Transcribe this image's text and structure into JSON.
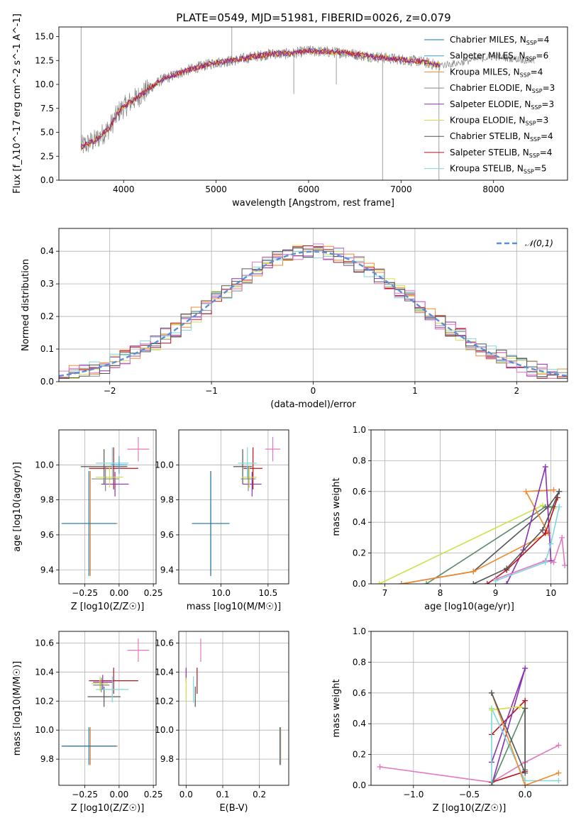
{
  "title": "PLATE=0549, MJD=51981, FIBERID=0026, z=0.079",
  "colors": {
    "chabrier_miles": "#1f77b4",
    "salpeter_miles": "#3a9fd8",
    "kroupa_miles": "#ef8a2f",
    "chabrier_elodie": "#888888",
    "salpeter_elodie": "#8b2fb0",
    "kroupa_elodie": "#cfe04a",
    "chabrier_stelib": "#555555",
    "salpeter_stelib": "#b8141a",
    "kroupa_stelib": "#7fd7dc",
    "pink": "#e377c2",
    "green": "#5a8a6a",
    "gauss": "#5b8fd6"
  },
  "chart_data": [
    {
      "id": "spectrum",
      "type": "line",
      "xlabel": "wavelength [Angstrom, rest frame]",
      "ylabel": "Flux [f_λ10^-17 erg cm^-2 s^-1 A^-1]",
      "xlim": [
        3300,
        8800
      ],
      "ylim": [
        0,
        16
      ],
      "xticks": [
        "4000",
        "5000",
        "6000",
        "7000",
        "8000"
      ],
      "yticks": [
        "0.0",
        "2.5",
        "5.0",
        "7.5",
        "10.0",
        "12.5",
        "15.0"
      ],
      "legend_loc": "upper-right",
      "legend": [
        "Chabrier MILES, N_SSP=4",
        "Salpeter MILES, N_SSP=6",
        "Kroupa MILES, N_SSP=4",
        "Chabrier ELODIE, N_SSP=3",
        "Salpeter ELODIE, N_SSP=3",
        "Kroupa ELODIE, N_SSP=3",
        "Chabrier STELIB, N_SSP=4",
        "Salpeter STELIB, N_SSP=4",
        "Kroupa STELIB, N_SSP=5"
      ],
      "continuum": {
        "x": [
          3540,
          3700,
          3850,
          3950,
          4050,
          4200,
          4400,
          4600,
          4800,
          5000,
          5200,
          5400,
          5600,
          5800,
          6000,
          6200,
          6400,
          6600,
          6800,
          7000,
          7200,
          7400,
          7600,
          7800,
          8000,
          8200,
          8400
        ],
        "y": [
          3.5,
          4.2,
          5.5,
          7.2,
          8.0,
          9.0,
          10.4,
          11.2,
          11.8,
          12.3,
          12.5,
          12.9,
          13.2,
          13.2,
          13.5,
          13.4,
          13.3,
          13.0,
          12.8,
          12.6,
          12.4,
          12.0,
          12.2,
          12.6,
          12.9,
          12.7,
          12.5
        ]
      }
    },
    {
      "id": "residuals",
      "type": "histogram",
      "xlabel": "(data-model)/error",
      "ylabel": "Normed distribution",
      "xlim": [
        -2.5,
        2.5
      ],
      "ylim": [
        0,
        0.47
      ],
      "xticks": [
        "−2",
        "−1",
        "0",
        "1",
        "2"
      ],
      "yticks": [
        "0.0",
        "0.1",
        "0.2",
        "0.3",
        "0.4"
      ],
      "legend_loc": "upper-right",
      "legend": [
        "𝒩(0,1)"
      ],
      "bin_width": 0.1,
      "gaussian": {
        "mu": 0,
        "sigma": 1
      }
    },
    {
      "id": "age-vs-Z",
      "type": "errorbar",
      "xlabel": "Z [log10(Z/Z☉)]",
      "ylabel": "age [log10(age/yr)]",
      "xlim": [
        -0.44,
        0.27
      ],
      "ylim": [
        9.32,
        10.2
      ],
      "xticks": [
        "−0.25",
        "0.00",
        "0.25"
      ],
      "yticks": [
        "9.4",
        "9.6",
        "9.8",
        "10.0"
      ],
      "points": [
        {
          "c": "kroupa_miles",
          "x": -0.21,
          "y": 9.665,
          "xerr": 0.2,
          "yerr": 0.3
        },
        {
          "c": "chabrier_miles",
          "x": -0.22,
          "y": 9.665,
          "xerr": 0.2,
          "yerr": 0.3
        },
        {
          "c": "pink",
          "x": 0.14,
          "y": 10.09,
          "xerr": 0.08,
          "yerr": 0.07
        },
        {
          "c": "chabrier_stelib",
          "x": -0.11,
          "y": 9.99,
          "xerr": 0.17,
          "yerr": 0.1
        },
        {
          "c": "salpeter_stelib",
          "x": -0.04,
          "y": 9.98,
          "xerr": 0.18,
          "yerr": 0.12
        },
        {
          "c": "kroupa_stelib",
          "x": -0.05,
          "y": 10.01,
          "xerr": 0.12,
          "yerr": 0.09
        },
        {
          "c": "salpeter_elodie",
          "x": -0.03,
          "y": 9.89,
          "xerr": 0.1,
          "yerr": 0.07
        },
        {
          "c": "kroupa_elodie",
          "x": -0.07,
          "y": 9.93,
          "xerr": 0.1,
          "yerr": 0.06
        },
        {
          "c": "chabrier_elodie",
          "x": -0.1,
          "y": 9.92,
          "xerr": 0.1,
          "yerr": 0.07
        },
        {
          "c": "salpeter_miles",
          "x": 0.0,
          "y": 10.0,
          "xerr": 0.06,
          "yerr": 0.05
        }
      ]
    },
    {
      "id": "age-vs-mass",
      "type": "errorbar",
      "xlabel": "mass [log10(M/M☉)]",
      "ylabel": "",
      "xlim": [
        9.55,
        10.72
      ],
      "ylim": [
        9.32,
        10.2
      ],
      "xticks": [
        "10.0",
        "10.5"
      ],
      "yticks": [
        "9.4",
        "9.6",
        "9.8",
        "10.0"
      ],
      "points": [
        {
          "c": "kroupa_miles",
          "x": 9.89,
          "y": 9.665,
          "xerr": 0.2,
          "yerr": 0.3
        },
        {
          "c": "chabrier_miles",
          "x": 9.89,
          "y": 9.665,
          "xerr": 0.2,
          "yerr": 0.3
        },
        {
          "c": "pink",
          "x": 10.55,
          "y": 10.09,
          "xerr": 0.08,
          "yerr": 0.07
        },
        {
          "c": "chabrier_stelib",
          "x": 10.23,
          "y": 9.99,
          "xerr": 0.1,
          "yerr": 0.1
        },
        {
          "c": "salpeter_stelib",
          "x": 10.34,
          "y": 9.98,
          "xerr": 0.1,
          "yerr": 0.12
        },
        {
          "c": "kroupa_stelib",
          "x": 10.28,
          "y": 10.01,
          "xerr": 0.1,
          "yerr": 0.09
        },
        {
          "c": "salpeter_elodie",
          "x": 10.33,
          "y": 9.89,
          "xerr": 0.1,
          "yerr": 0.07
        },
        {
          "c": "kroupa_elodie",
          "x": 10.3,
          "y": 9.93,
          "xerr": 0.08,
          "yerr": 0.06
        },
        {
          "c": "chabrier_elodie",
          "x": 10.29,
          "y": 9.92,
          "xerr": 0.08,
          "yerr": 0.07
        }
      ]
    },
    {
      "id": "weight-vs-age",
      "type": "line",
      "xlabel": "age [log10(age/yr)]",
      "ylabel": "mass weight",
      "xlim": [
        6.75,
        10.3
      ],
      "ylim": [
        0,
        1.0
      ],
      "xticks": [
        "7",
        "8",
        "9",
        "10"
      ],
      "yticks": [
        "0.0",
        "0.2",
        "0.4",
        "0.6",
        "0.8",
        "1.0"
      ],
      "series": [
        {
          "c": "kroupa_elodie",
          "x": [
            6.9,
            9.85,
            10.05
          ],
          "y": [
            0.0,
            0.51,
            0.49
          ]
        },
        {
          "c": "green",
          "x": [
            7.75,
            9.9,
            10.05
          ],
          "y": [
            0.0,
            0.5,
            0.5
          ]
        },
        {
          "c": "chabrier_stelib",
          "x": [
            7.3,
            8.6,
            9.95,
            10.15
          ],
          "y": [
            0.0,
            0.08,
            0.5,
            0.6
          ]
        },
        {
          "c": "kroupa_miles",
          "x": [
            7.3,
            8.6,
            9.95,
            9.55,
            10.05
          ],
          "y": [
            0.0,
            0.08,
            0.33,
            0.6,
            0.61
          ]
        },
        {
          "c": "salpeter_elodie",
          "x": [
            9.2,
            9.5,
            9.9,
            10.0
          ],
          "y": [
            0.0,
            0.22,
            0.76,
            0.15
          ]
        },
        {
          "c": "salpeter_stelib",
          "x": [
            8.85,
            9.2,
            9.9,
            10.12
          ],
          "y": [
            0.0,
            0.09,
            0.33,
            0.56
          ]
        },
        {
          "c": "chabrier_stelib",
          "x": [
            8.6,
            9.2,
            9.85,
            10.15
          ],
          "y": [
            0.0,
            0.1,
            0.35,
            0.6
          ]
        },
        {
          "c": "pink",
          "x": [
            9.0,
            9.9,
            10.05,
            10.2,
            10.25
          ],
          "y": [
            0.03,
            0.15,
            0.14,
            0.3,
            0.12
          ]
        },
        {
          "c": "kroupa_stelib",
          "x": [
            9.0,
            9.9,
            10.0,
            10.15
          ],
          "y": [
            0.02,
            0.14,
            0.26,
            0.5
          ]
        }
      ]
    },
    {
      "id": "mass-vs-Z",
      "type": "errorbar",
      "xlabel": "Z [log10(Z/Z☉)]",
      "ylabel": "mass [log10(M/M☉)]",
      "xlim": [
        -0.44,
        0.27
      ],
      "ylim": [
        9.62,
        10.68
      ],
      "xticks": [
        "−0.25",
        "0.00",
        "0.25"
      ],
      "yticks": [
        "9.8",
        "10.0",
        "10.2",
        "10.4",
        "10.6"
      ],
      "points": [
        {
          "c": "kroupa_miles",
          "x": -0.21,
          "y": 9.89,
          "xerr": 0.2,
          "yerr": 0.13
        },
        {
          "c": "chabrier_miles",
          "x": -0.22,
          "y": 9.89,
          "xerr": 0.2,
          "yerr": 0.13
        },
        {
          "c": "pink",
          "x": 0.14,
          "y": 10.55,
          "xerr": 0.08,
          "yerr": 0.08
        },
        {
          "c": "chabrier_stelib",
          "x": -0.11,
          "y": 10.23,
          "xerr": 0.12,
          "yerr": 0.07
        },
        {
          "c": "salpeter_stelib",
          "x": -0.04,
          "y": 10.34,
          "xerr": 0.18,
          "yerr": 0.09
        },
        {
          "c": "kroupa_stelib",
          "x": -0.05,
          "y": 10.28,
          "xerr": 0.12,
          "yerr": 0.09
        },
        {
          "c": "salpeter_elodie",
          "x": -0.12,
          "y": 10.33,
          "xerr": 0.07,
          "yerr": 0.05
        },
        {
          "c": "kroupa_elodie",
          "x": -0.14,
          "y": 10.32,
          "xerr": 0.06,
          "yerr": 0.05
        },
        {
          "c": "chabrier_elodie",
          "x": -0.13,
          "y": 10.31,
          "xerr": 0.06,
          "yerr": 0.05
        }
      ]
    },
    {
      "id": "mass-vs-ebv",
      "type": "errorbar",
      "xlabel": "E(B-V)",
      "ylabel": "",
      "xlim": [
        -0.02,
        0.28
      ],
      "ylim": [
        9.62,
        10.68
      ],
      "xticks": [
        "0.0",
        "0.1",
        "0.2"
      ],
      "yticks": [
        "9.8",
        "10.0",
        "10.2",
        "10.4",
        "10.6"
      ],
      "points": [
        {
          "c": "kroupa_miles",
          "x": 0.258,
          "y": 9.89,
          "xerr": 0.0,
          "yerr": 0.13
        },
        {
          "c": "chabrier_miles",
          "x": 0.256,
          "y": 9.89,
          "xerr": 0.0,
          "yerr": 0.13
        },
        {
          "c": "pink",
          "x": 0.04,
          "y": 10.55,
          "xerr": 0.0,
          "yerr": 0.08
        },
        {
          "c": "chabrier_stelib",
          "x": 0.025,
          "y": 10.23,
          "xerr": 0.0,
          "yerr": 0.07
        },
        {
          "c": "salpeter_stelib",
          "x": 0.03,
          "y": 10.34,
          "xerr": 0.0,
          "yerr": 0.09
        },
        {
          "c": "kroupa_stelib",
          "x": 0.02,
          "y": 10.28,
          "xerr": 0.0,
          "yerr": 0.09
        },
        {
          "c": "salpeter_elodie",
          "x": 0.0,
          "y": 10.38,
          "xerr": 0.0,
          "yerr": 0.05
        },
        {
          "c": "kroupa_elodie",
          "x": 0.0,
          "y": 10.28,
          "xerr": 0.0,
          "yerr": 0.08
        }
      ]
    },
    {
      "id": "weight-vs-Z",
      "type": "line",
      "xlabel": "Z [log10(Z/Z☉)]",
      "ylabel": "mass weight",
      "xlim": [
        -1.38,
        0.38
      ],
      "ylim": [
        0,
        1.0
      ],
      "xticks": [
        "−1.0",
        "−0.5",
        "0.0"
      ],
      "yticks": [
        "0.0",
        "0.2",
        "0.4",
        "0.6",
        "0.8",
        "1.0"
      ],
      "series": [
        {
          "c": "pink",
          "x": [
            -1.3,
            -0.3,
            0.0,
            0.3
          ],
          "y": [
            0.12,
            0.02,
            0.15,
            0.26
          ]
        },
        {
          "c": "salpeter_stelib",
          "x": [
            -0.3,
            0.0,
            0.0,
            -0.3
          ],
          "y": [
            0.02,
            0.09,
            0.55,
            0.33
          ]
        },
        {
          "c": "salpeter_elodie",
          "x": [
            -0.3,
            0.0,
            -0.3
          ],
          "y": [
            0.15,
            0.76,
            0.0
          ]
        },
        {
          "c": "kroupa_stelib",
          "x": [
            -0.3,
            -0.3,
            0.0,
            0.3
          ],
          "y": [
            0.0,
            0.5,
            0.03,
            0.03
          ]
        },
        {
          "c": "kroupa_elodie",
          "x": [
            -0.3,
            -0.05,
            0.0
          ],
          "y": [
            0.49,
            0.51,
            0.5
          ]
        },
        {
          "c": "green",
          "x": [
            -0.3,
            0.0,
            0.0
          ],
          "y": [
            0.0,
            0.5,
            0.1
          ]
        },
        {
          "c": "kroupa_miles",
          "x": [
            -0.3,
            0.0,
            0.3
          ],
          "y": [
            0.6,
            0.0,
            0.08
          ]
        },
        {
          "c": "chabrier_stelib",
          "x": [
            -0.3,
            0.0,
            0.0
          ],
          "y": [
            0.6,
            0.08,
            0.5
          ]
        }
      ]
    }
  ]
}
